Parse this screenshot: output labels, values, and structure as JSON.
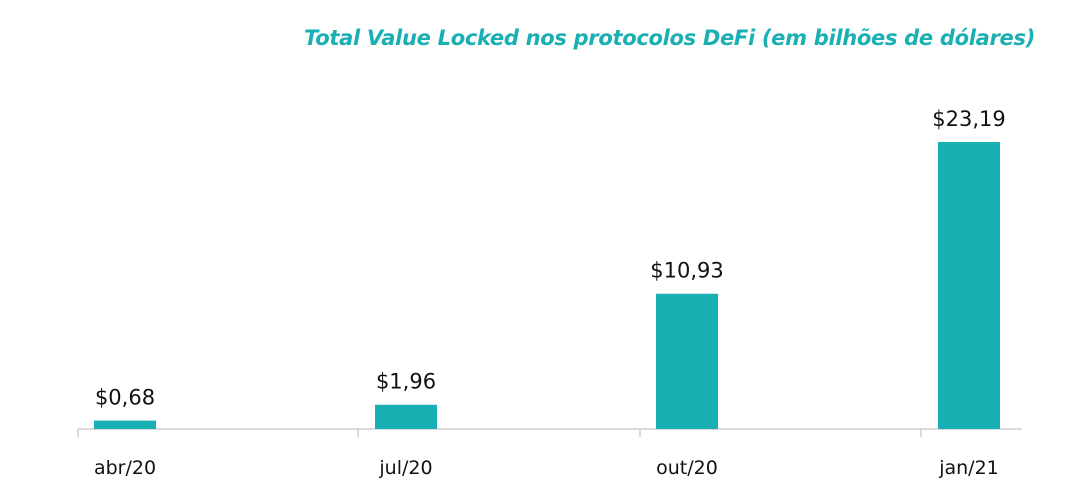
{
  "chart_data": {
    "type": "bar",
    "title": "Total Value Locked  nos protocolos  DeFi  (em bilhões de dólares)",
    "categories": [
      "abr/20",
      "jul/20",
      "out/20",
      "jan/21"
    ],
    "values": [
      0.68,
      1.96,
      10.93,
      23.19
    ],
    "data_labels": [
      "$0,68",
      "$1,96",
      "$10,93",
      "$23,19"
    ],
    "xlabel": "",
    "ylabel": "",
    "ylim": [
      0,
      23.19
    ],
    "grid": false,
    "legend": "none",
    "colors": {
      "bar": "#1aafb3",
      "title": "#1aafb3",
      "axis": "#cfcfcf"
    }
  }
}
